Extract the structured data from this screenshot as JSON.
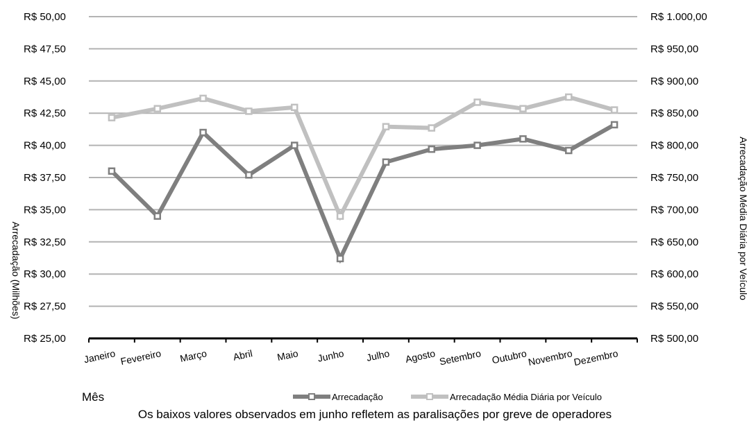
{
  "chart_data": {
    "type": "line",
    "categories": [
      "Janeiro",
      "Fevereiro",
      "Março",
      "Abril",
      "Maio",
      "Junho",
      "Julho",
      "Agosto",
      "Setembro",
      "Outubro",
      "Novembro",
      "Dezembro"
    ],
    "xlabel": "Mês",
    "ylabel_left": "Arrecadação (Milhões)",
    "ylabel_right": "Arrecadação Média Diária por Veículo",
    "ylim_left": [
      25,
      50
    ],
    "ylim_right": [
      500,
      1000
    ],
    "yticks_left": [
      "R$ 25,00",
      "R$ 27,50",
      "R$ 30,00",
      "R$ 32,50",
      "R$ 35,00",
      "R$ 37,50",
      "R$ 40,00",
      "R$ 42,50",
      "R$ 45,00",
      "R$ 47,50",
      "R$ 50,00"
    ],
    "yticks_right": [
      "R$ 500,00",
      "R$ 550,00",
      "R$ 600,00",
      "R$ 650,00",
      "R$ 700,00",
      "R$ 750,00",
      "R$ 800,00",
      "R$ 850,00",
      "R$ 900,00",
      "R$ 950,00",
      "R$ 1.000,00"
    ],
    "grid": true,
    "legend_position": "bottom",
    "series": [
      {
        "name": "Arrecadação",
        "axis": "left",
        "color": "#7f7f7f",
        "values": [
          38.0,
          34.5,
          41.0,
          37.7,
          40.0,
          31.2,
          38.7,
          39.7,
          40.0,
          40.5,
          39.6,
          41.6
        ]
      },
      {
        "name": "Arrecadação Média Diária por Veículo",
        "axis": "right",
        "color": "#c0c0c0",
        "values": [
          843,
          857,
          873,
          853,
          859,
          690,
          829,
          827,
          867,
          857,
          875,
          855
        ]
      }
    ],
    "caption": "Os baixos valores observados em junho refletem as paralisações por greve de operadores"
  }
}
